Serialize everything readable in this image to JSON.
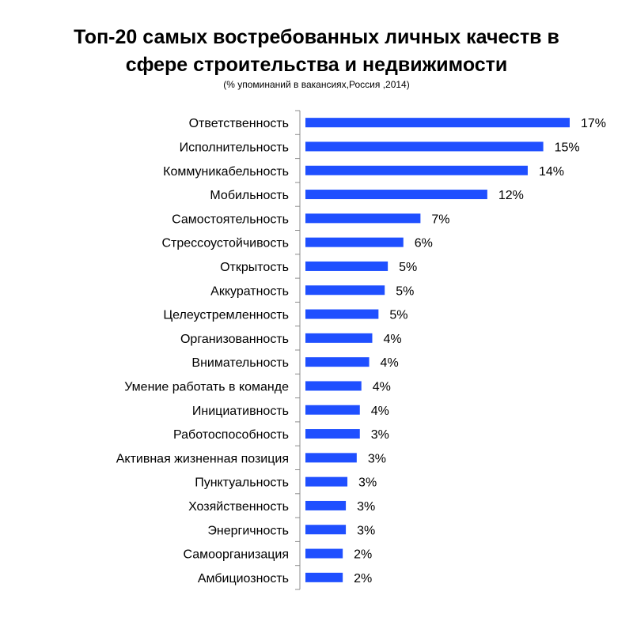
{
  "chart_data": {
    "type": "bar",
    "orientation": "horizontal",
    "title_lines": [
      "Топ-20 самых востребованных личных качеств в",
      "сфере строительства и недвижимости"
    ],
    "subtitle": "(% упоминаний в вакансиях,Россия ,2014)",
    "categories": [
      "Ответственность",
      "Исполнительность",
      "Коммуникабельность",
      "Мобильность",
      "Самостоятельность",
      "Стрессоустойчивость",
      "Открытость",
      "Аккуратность",
      "Целеустремленность",
      "Организованность",
      "Внимательность",
      "Умение работать в команде",
      "Инициативность",
      "Работоспособность",
      "Активная жизненная позиция",
      "Пунктуальность",
      "Хозяйственность",
      "Энергичность",
      "Самоорганизация",
      "Амбициозность"
    ],
    "values": [
      17.0,
      15.3,
      14.3,
      11.7,
      7.4,
      6.3,
      5.3,
      5.1,
      4.7,
      4.3,
      4.1,
      3.6,
      3.5,
      3.5,
      3.3,
      2.7,
      2.6,
      2.6,
      2.4,
      2.4
    ],
    "value_labels": [
      "17%",
      "15%",
      "14%",
      "12%",
      "7%",
      "6%",
      "5%",
      "5%",
      "5%",
      "4%",
      "4%",
      "4%",
      "4%",
      "3%",
      "3%",
      "3%",
      "3%",
      "3%",
      "2%",
      "2%"
    ],
    "xlim": [
      0,
      17.0
    ],
    "bar_color": "#1f4fff",
    "axis_color": "#8c8c8c",
    "grid": false,
    "legend": "none"
  }
}
